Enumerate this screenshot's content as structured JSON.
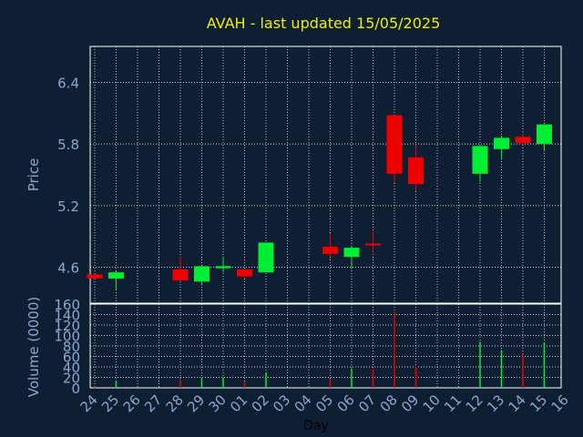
{
  "chart_data": [
    {
      "type": "candlestick",
      "title": "AVAH - last updated 15/05/2025",
      "ylabel": "Price",
      "ylim": [
        4.25,
        6.75
      ],
      "yticks": [
        4.6,
        5.2,
        5.8,
        6.4
      ],
      "ytick_labels": [
        "4.6",
        "5.2",
        "5.8",
        "6.4"
      ],
      "grid": true,
      "categories": [
        "24",
        "25",
        "26",
        "27",
        "28",
        "29",
        "30",
        "01",
        "02",
        "03",
        "04",
        "05",
        "06",
        "07",
        "08",
        "09",
        "10",
        "11",
        "12",
        "13",
        "14",
        "15",
        "16"
      ],
      "candles": [
        {
          "day": "24",
          "open": 4.53,
          "close": 4.49,
          "high": 4.53,
          "low": 4.49
        },
        {
          "day": "25",
          "open": 4.49,
          "close": 4.55,
          "high": 4.56,
          "low": 4.38
        },
        {
          "day": "28",
          "open": 4.58,
          "close": 4.47,
          "high": 4.71,
          "low": 4.47
        },
        {
          "day": "29",
          "open": 4.46,
          "close": 4.61,
          "high": 4.61,
          "low": 4.44
        },
        {
          "day": "30",
          "open": 4.59,
          "close": 4.61,
          "high": 4.7,
          "low": 4.55
        },
        {
          "day": "01",
          "open": 4.58,
          "close": 4.51,
          "high": 4.58,
          "low": 4.49
        },
        {
          "day": "02",
          "open": 4.55,
          "close": 4.84,
          "high": 4.84,
          "low": 4.55
        },
        {
          "day": "05",
          "open": 4.8,
          "close": 4.73,
          "high": 4.93,
          "low": 4.7
        },
        {
          "day": "06",
          "open": 4.7,
          "close": 4.79,
          "high": 4.8,
          "low": 4.58
        },
        {
          "day": "07",
          "open": 4.83,
          "close": 4.82,
          "high": 4.95,
          "low": 4.75
        },
        {
          "day": "08",
          "open": 6.08,
          "close": 5.51,
          "high": 6.08,
          "low": 5.42
        },
        {
          "day": "09",
          "open": 5.67,
          "close": 5.41,
          "high": 5.79,
          "low": 5.34
        },
        {
          "day": "12",
          "open": 5.51,
          "close": 5.78,
          "high": 5.78,
          "low": 5.43
        },
        {
          "day": "13",
          "open": 5.75,
          "close": 5.86,
          "high": 5.88,
          "low": 5.66
        },
        {
          "day": "14",
          "open": 5.87,
          "close": 5.81,
          "high": 5.91,
          "low": 5.79
        },
        {
          "day": "15",
          "open": 5.8,
          "close": 5.99,
          "high": 5.99,
          "low": 5.73
        }
      ],
      "colors": {
        "up": "#00ee33",
        "down": "#ee0000"
      }
    },
    {
      "type": "bar",
      "xlabel": "Day",
      "ylabel": "Volume (0000)",
      "ylim": [
        0,
        160
      ],
      "yticks": [
        0,
        20,
        40,
        60,
        80,
        100,
        120,
        140,
        160
      ],
      "ytick_labels": [
        "0",
        "20",
        "40",
        "60",
        "80",
        "100",
        "120",
        "140",
        "160"
      ],
      "grid": true,
      "categories": [
        "24",
        "25",
        "26",
        "27",
        "28",
        "29",
        "30",
        "01",
        "02",
        "03",
        "04",
        "05",
        "06",
        "07",
        "08",
        "09",
        "10",
        "11",
        "12",
        "13",
        "14",
        "15",
        "16"
      ],
      "tick_labels": [
        "24",
        "25",
        "26",
        "27",
        "28",
        "29",
        "30",
        "01",
        "02",
        "03",
        "04",
        "05",
        "06",
        "07",
        "08",
        "09",
        "10",
        "11",
        "12",
        "13",
        "14",
        "15",
        "16"
      ],
      "bars": [
        {
          "day": "24",
          "value": 2,
          "dir": "down"
        },
        {
          "day": "25",
          "value": 14,
          "dir": "up"
        },
        {
          "day": "28",
          "value": 16,
          "dir": "down"
        },
        {
          "day": "29",
          "value": 17,
          "dir": "up"
        },
        {
          "day": "30",
          "value": 20,
          "dir": "up"
        },
        {
          "day": "01",
          "value": 12,
          "dir": "down"
        },
        {
          "day": "02",
          "value": 29,
          "dir": "up"
        },
        {
          "day": "05",
          "value": 17,
          "dir": "down"
        },
        {
          "day": "06",
          "value": 37,
          "dir": "up"
        },
        {
          "day": "07",
          "value": 36,
          "dir": "down"
        },
        {
          "day": "08",
          "value": 145,
          "dir": "down"
        },
        {
          "day": "09",
          "value": 41,
          "dir": "down"
        },
        {
          "day": "12",
          "value": 88,
          "dir": "up"
        },
        {
          "day": "13",
          "value": 72,
          "dir": "up"
        },
        {
          "day": "14",
          "value": 64,
          "dir": "down"
        },
        {
          "day": "15",
          "value": 87,
          "dir": "up"
        }
      ],
      "colors": {
        "up": "#00ee33",
        "down": "#ee0000"
      }
    }
  ],
  "theme": {
    "background": "#0f1f33",
    "title_color": "#eeee00",
    "label_color": "#8aa8cc",
    "grid_color": "#ffffff",
    "frame_color": "#ffffff"
  }
}
